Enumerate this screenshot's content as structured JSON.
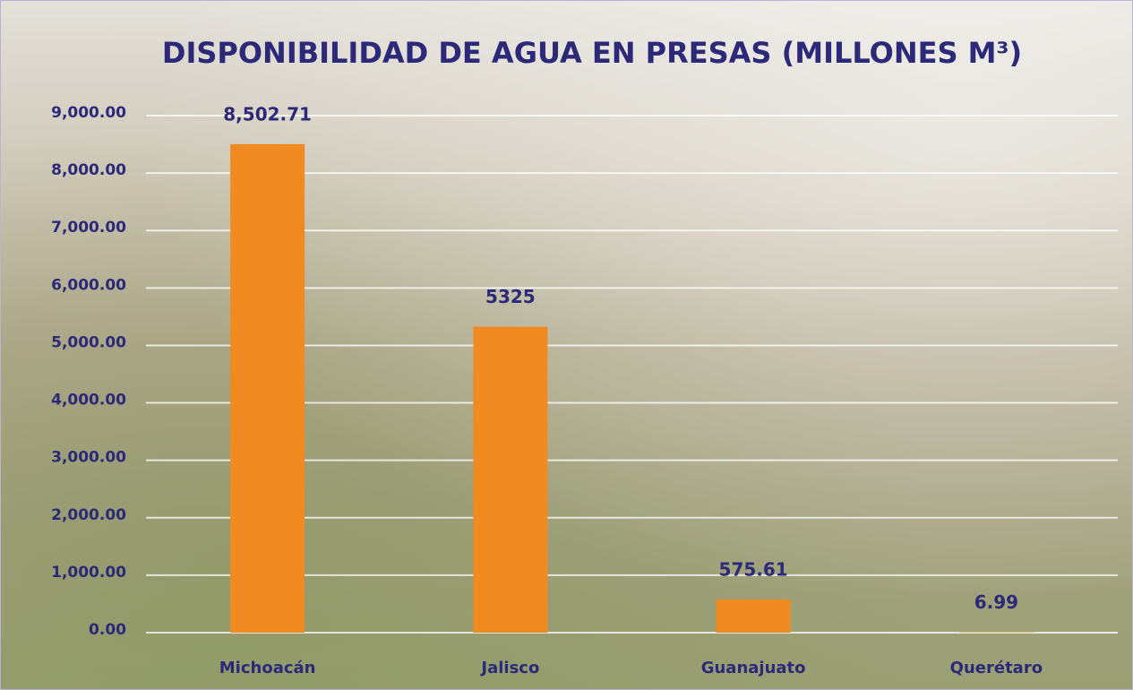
{
  "chart_data": {
    "type": "bar",
    "title": "DISPONIBILIDAD DE AGUA EN PRESAS (MILLONES M³)",
    "categories": [
      "Michoacán",
      "Jalisco",
      "Guanajuato",
      "Querétaro"
    ],
    "values": [
      8502.71,
      5325,
      575.61,
      6.99
    ],
    "value_labels": [
      "8,502.71",
      "5325",
      "575.61",
      "6.99"
    ],
    "color": "#f28a22",
    "ylim": [
      0,
      9000
    ],
    "yticks": [
      {
        "value": 0,
        "label": "0.00"
      },
      {
        "value": 1000,
        "label": "1,000.00"
      },
      {
        "value": 2000,
        "label": "2,000.00"
      },
      {
        "value": 3000,
        "label": "3,000.00"
      },
      {
        "value": 4000,
        "label": "4,000.00"
      },
      {
        "value": 5000,
        "label": "5,000.00"
      },
      {
        "value": 6000,
        "label": "6,000.00"
      },
      {
        "value": 7000,
        "label": "7,000.00"
      },
      {
        "value": 8000,
        "label": "8,000.00"
      },
      {
        "value": 9000,
        "label": "9,000.00"
      }
    ],
    "grid": true
  }
}
